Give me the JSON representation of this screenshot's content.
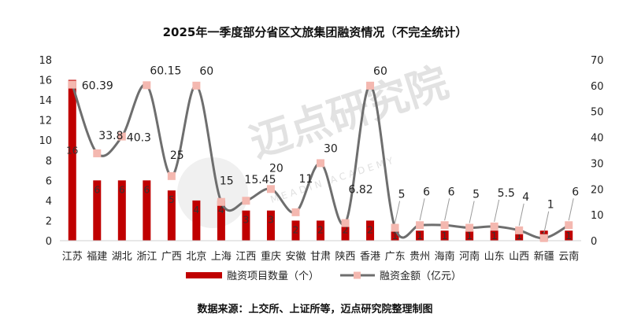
{
  "chart_data": {
    "type": "bar",
    "title": "2025年一季度部分省区文旅集团融资情况（不完全统计）",
    "categories": [
      "江苏",
      "福建",
      "湖北",
      "浙江",
      "广西",
      "北京",
      "上海",
      "江西",
      "重庆",
      "安徽",
      "甘肃",
      "陕西",
      "香港",
      "广东",
      "贵州",
      "海南",
      "河南",
      "山东",
      "山西",
      "新疆",
      "云南"
    ],
    "series": [
      {
        "name": "融资项目数量（个）",
        "type": "bar",
        "axis": "left",
        "color": "#c00000",
        "values": [
          16,
          6,
          6,
          6,
          5,
          4,
          4,
          3,
          3,
          2,
          2,
          2,
          2,
          1,
          1,
          1,
          1,
          1,
          1,
          1,
          1
        ]
      },
      {
        "name": "融资金额（亿元）",
        "type": "line",
        "axis": "right",
        "color": "#6e6e6e",
        "marker_color": "#f4b8b0",
        "values": [
          60.39,
          33.8,
          40.3,
          60.15,
          25,
          60,
          15,
          15.45,
          20,
          11,
          30,
          6.82,
          60,
          5,
          6,
          6,
          5,
          5.5,
          4,
          1,
          6
        ]
      }
    ],
    "left_axis": {
      "min": 0,
      "max": 18,
      "ticks": [
        "0",
        "2",
        "4",
        "6",
        "8",
        "10",
        "12",
        "14",
        "16",
        "18"
      ]
    },
    "right_axis": {
      "min": 0,
      "max": 70,
      "ticks": [
        "0",
        "10",
        "20",
        "30",
        "40",
        "50",
        "60",
        "70"
      ]
    },
    "bar_labels": [
      "16",
      "6",
      "6",
      "6",
      "5",
      "4",
      "4",
      "3",
      "3",
      "2",
      "2",
      "2",
      "2",
      "1",
      "1",
      "1",
      "1",
      "1",
      "1",
      "1",
      "1"
    ],
    "line_labels": [
      "60.39",
      "33.8",
      "40.3",
      "60.15",
      "25",
      "60",
      "15",
      "15.45",
      "20",
      "11",
      "30",
      "6.82",
      "60",
      "5",
      "6",
      "6",
      "5",
      "5.5",
      "4",
      "1",
      "6"
    ],
    "legend_position": "bottom",
    "grid": false
  },
  "watermark": {
    "text": "迈点研究院",
    "sub": "MEADIN ACADEMY"
  },
  "source_text": "数据来源：上交所、上证所等，迈点研究院整理制图"
}
